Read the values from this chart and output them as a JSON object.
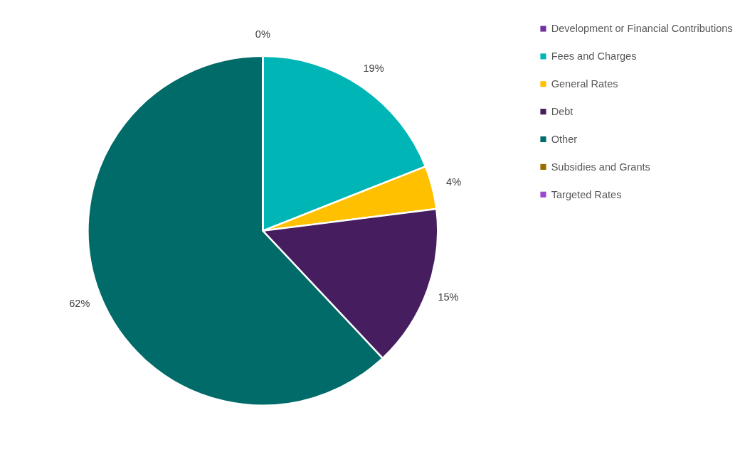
{
  "chart_data": {
    "type": "pie",
    "categories": [
      "Development or Financial Contributions",
      "Fees and Charges",
      "General Rates",
      "Debt",
      "Other",
      "Subsidies and Grants",
      "Targeted Rates"
    ],
    "values": [
      0,
      19,
      4,
      15,
      62,
      0,
      0
    ],
    "colors": [
      "#7030a0",
      "#00b5b5",
      "#ffc000",
      "#461d5e",
      "#006b68",
      "#9c6b00",
      "#9a48cc"
    ],
    "value_labels": [
      "0%",
      "19%",
      "4%",
      "15%",
      "62%",
      null,
      null
    ],
    "legend": "right"
  }
}
